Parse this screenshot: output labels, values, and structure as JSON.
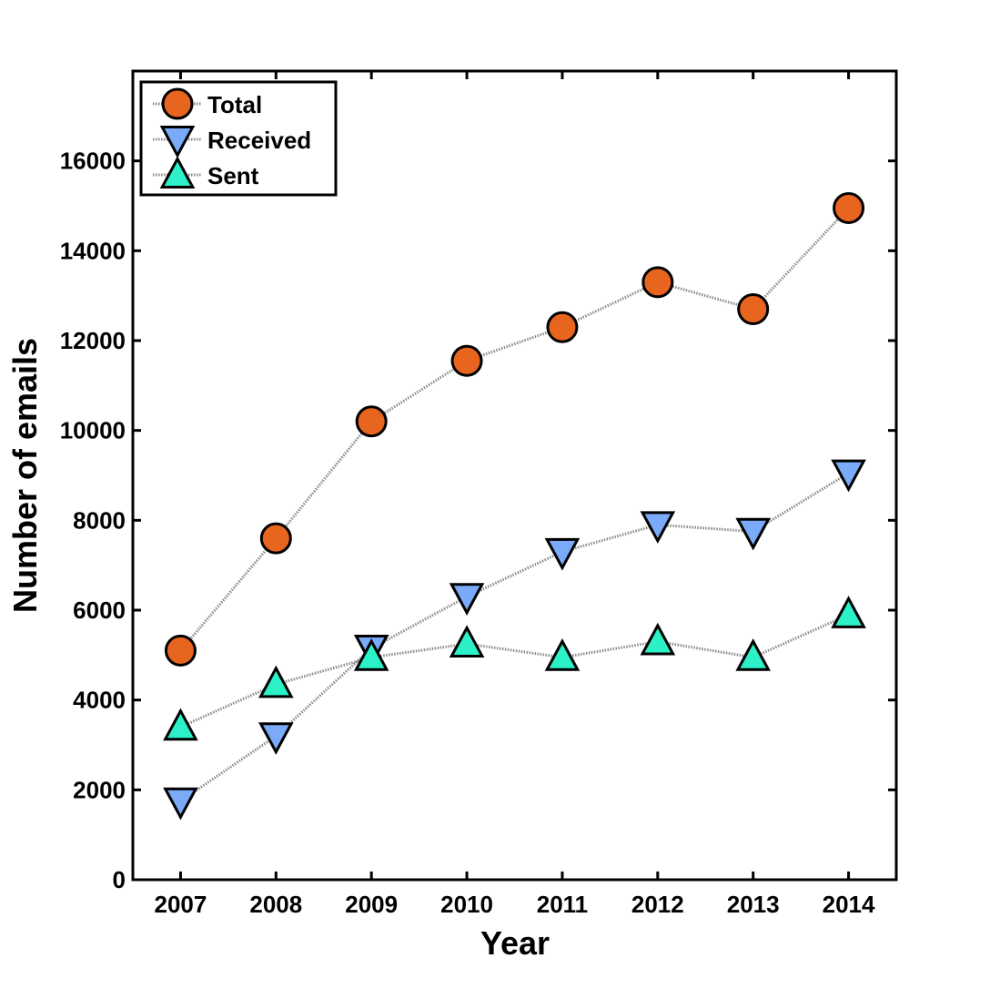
{
  "chart_data": {
    "type": "line",
    "title": "",
    "xlabel": "Year",
    "ylabel": "Number of emails",
    "x": [
      2007,
      2008,
      2009,
      2010,
      2011,
      2012,
      2013,
      2014
    ],
    "xticks": [
      "2007",
      "2008",
      "2009",
      "2010",
      "2011",
      "2012",
      "2013",
      "2014"
    ],
    "xlim": [
      2006.5,
      2014.5
    ],
    "ylim": [
      0,
      18000
    ],
    "yticks": [
      "0",
      "2000",
      "4000",
      "6000",
      "8000",
      "10000",
      "12000",
      "14000",
      "16000"
    ],
    "ytick_values": [
      0,
      2000,
      4000,
      6000,
      8000,
      10000,
      12000,
      14000,
      16000
    ],
    "grid": false,
    "legend_position": "top-left",
    "series": [
      {
        "name": "Total",
        "marker": "circle",
        "color": "#e8651f",
        "values": [
          5100,
          7600,
          10200,
          11550,
          12300,
          13300,
          12700,
          14950
        ]
      },
      {
        "name": "Received",
        "marker": "triangle-down",
        "color": "#7aaaf8",
        "values": [
          1750,
          3200,
          5150,
          6300,
          7300,
          7900,
          7750,
          9050
        ]
      },
      {
        "name": "Sent",
        "marker": "triangle-up",
        "color": "#2cf1c8",
        "values": [
          3400,
          4350,
          4950,
          5250,
          4950,
          5300,
          4950,
          5900
        ]
      }
    ]
  }
}
